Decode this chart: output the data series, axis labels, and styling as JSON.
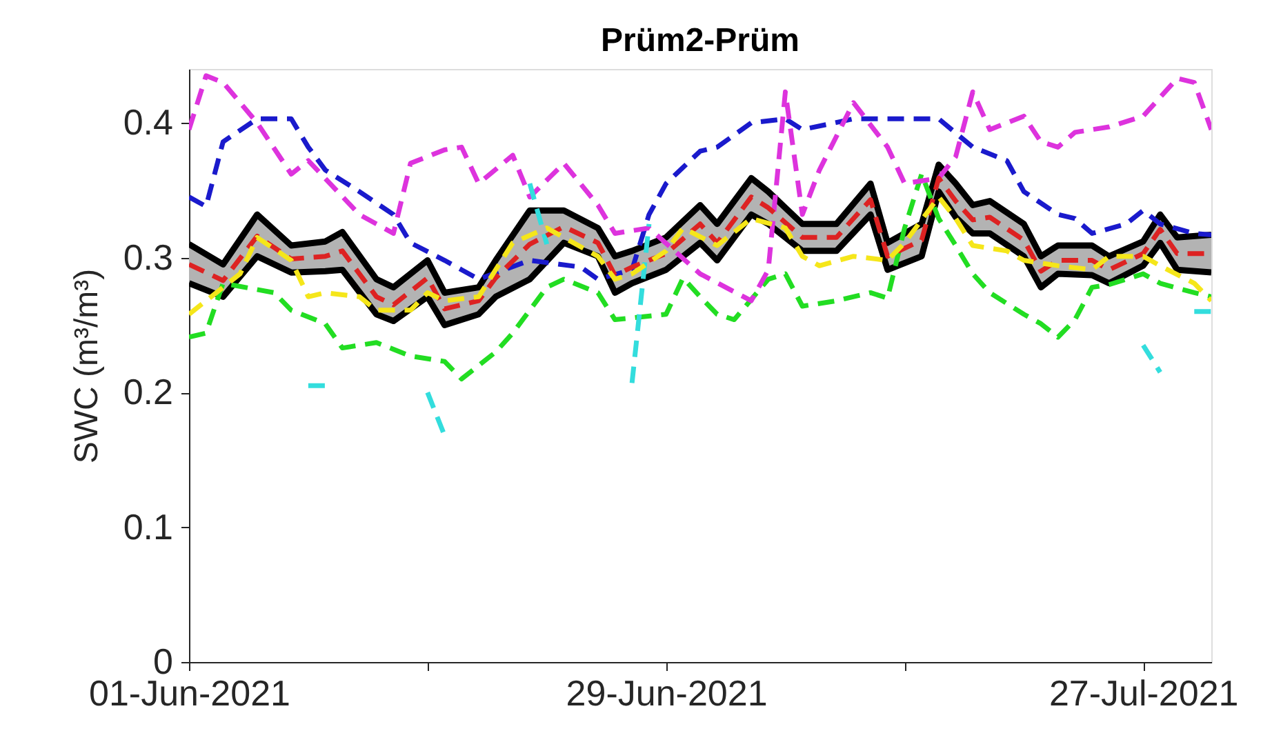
{
  "chart_data": {
    "type": "line",
    "title": "Prüm2-Prüm",
    "ylabel": "SWC (m³/m³)",
    "xlim": [
      "2021-06-01",
      "2021-07-31"
    ],
    "xticks": [
      {
        "value": "2021-06-01",
        "label": "01-Jun-2021"
      },
      {
        "value": "2021-06-15",
        "label": null
      },
      {
        "value": "2021-06-29",
        "label": "29-Jun-2021"
      },
      {
        "value": "2021-07-13",
        "label": null
      },
      {
        "value": "2021-07-27",
        "label": "27-Jul-2021"
      }
    ],
    "ylim": [
      0,
      0.44
    ],
    "yticks": [
      0,
      0.1,
      0.2,
      0.3,
      0.4
    ],
    "line_style": "dashed",
    "series": [
      {
        "color": "#22dd22",
        "x": [
          "2021-06-01",
          "2021-06-02",
          "2021-06-03",
          "2021-06-06",
          "2021-06-07",
          "2021-06-09",
          "2021-06-10",
          "2021-06-12",
          "2021-06-14",
          "2021-06-16",
          "2021-06-17",
          "2021-06-19",
          "2021-06-20",
          "2021-06-22",
          "2021-06-23",
          "2021-06-25",
          "2021-06-26",
          "2021-06-29",
          "2021-06-30",
          "2021-07-01",
          "2021-07-02",
          "2021-07-03",
          "2021-07-05",
          "2021-07-06",
          "2021-07-07",
          "2021-07-09",
          "2021-07-11",
          "2021-07-12",
          "2021-07-13",
          "2021-07-14",
          "2021-07-15",
          "2021-07-16",
          "2021-07-17",
          "2021-07-18",
          "2021-07-20",
          "2021-07-21",
          "2021-07-22",
          "2021-07-23",
          "2021-07-24",
          "2021-07-25",
          "2021-07-27",
          "2021-07-28",
          "2021-07-30",
          "2021-07-31"
        ],
        "values": [
          0.241,
          0.244,
          0.281,
          0.274,
          0.261,
          0.251,
          0.233,
          0.237,
          0.227,
          0.223,
          0.21,
          0.23,
          0.244,
          0.278,
          0.284,
          0.274,
          0.254,
          0.258,
          0.285,
          0.271,
          0.258,
          0.254,
          0.284,
          0.288,
          0.264,
          0.268,
          0.274,
          0.27,
          0.322,
          0.362,
          0.329,
          0.309,
          0.288,
          0.274,
          0.258,
          0.251,
          0.241,
          0.254,
          0.278,
          0.28,
          0.288,
          0.281,
          0.274,
          0.271
        ]
      },
      {
        "color": "#1a1acc",
        "x": [
          "2021-06-01",
          "2021-06-02",
          "2021-06-03",
          "2021-06-05",
          "2021-06-07",
          "2021-06-08",
          "2021-06-09",
          "2021-06-11",
          "2021-06-13",
          "2021-06-14",
          "2021-06-16",
          "2021-06-17",
          "2021-06-18",
          "2021-06-21",
          "2021-06-24",
          "2021-06-25",
          "2021-06-27",
          "2021-06-28",
          "2021-06-29",
          "2021-07-01",
          "2021-07-02",
          "2021-07-04",
          "2021-07-06",
          "2021-07-07",
          "2021-07-10",
          "2021-07-15",
          "2021-07-17",
          "2021-07-19",
          "2021-07-20",
          "2021-07-22",
          "2021-07-23",
          "2021-07-24",
          "2021-07-26",
          "2021-07-27",
          "2021-07-28",
          "2021-07-30",
          "2021-07-31"
        ],
        "values": [
          0.345,
          0.338,
          0.386,
          0.403,
          0.403,
          0.382,
          0.365,
          0.349,
          0.332,
          0.311,
          0.298,
          0.291,
          0.284,
          0.298,
          0.293,
          0.284,
          0.291,
          0.332,
          0.355,
          0.379,
          0.382,
          0.4,
          0.403,
          0.395,
          0.403,
          0.403,
          0.382,
          0.372,
          0.349,
          0.332,
          0.329,
          0.318,
          0.325,
          0.335,
          0.325,
          0.318,
          0.317
        ]
      },
      {
        "color": "#dd33dd",
        "x": [
          "2021-06-01",
          "2021-06-02",
          "2021-06-03",
          "2021-06-05",
          "2021-06-07",
          "2021-06-08",
          "2021-06-11",
          "2021-06-12",
          "2021-06-13",
          "2021-06-14",
          "2021-06-16",
          "2021-06-17",
          "2021-06-18",
          "2021-06-20",
          "2021-06-21",
          "2021-06-23",
          "2021-06-25",
          "2021-06-26",
          "2021-06-28",
          "2021-07-01",
          "2021-07-04",
          "2021-07-05",
          "2021-07-06",
          "2021-07-07",
          "2021-07-08",
          "2021-07-10",
          "2021-07-12",
          "2021-07-13",
          "2021-07-15",
          "2021-07-16",
          "2021-07-17",
          "2021-07-18",
          "2021-07-20",
          "2021-07-21",
          "2021-07-22",
          "2021-07-23",
          "2021-07-25",
          "2021-07-27",
          "2021-07-29",
          "2021-07-30",
          "2021-07-31"
        ],
        "values": [
          0.395,
          0.435,
          0.43,
          0.4,
          0.362,
          0.372,
          0.332,
          0.325,
          0.318,
          0.37,
          0.38,
          0.382,
          0.355,
          0.376,
          0.345,
          0.37,
          0.339,
          0.318,
          0.322,
          0.288,
          0.268,
          0.291,
          0.423,
          0.332,
          0.365,
          0.415,
          0.382,
          0.355,
          0.359,
          0.375,
          0.423,
          0.395,
          0.405,
          0.386,
          0.382,
          0.393,
          0.397,
          0.405,
          0.433,
          0.43,
          0.395
        ]
      },
      {
        "color": "#33dddd",
        "x": [
          "2021-06-08",
          "2021-06-09",
          "2021-06-10",
          "2021-06-15",
          "2021-06-16",
          "2021-06-17",
          "2021-06-21",
          "2021-06-22",
          "2021-06-23",
          "2021-06-27",
          "2021-06-28",
          "2021-06-29",
          "2021-07-27",
          "2021-07-28",
          "2021-07-29",
          "2021-07-30",
          "2021-07-31"
        ],
        "values": [
          0.205,
          0.205,
          null,
          0.2,
          0.168,
          null,
          0.355,
          0.31,
          null,
          0.207,
          0.325,
          null,
          0.235,
          0.215,
          null,
          0.26,
          0.26
        ]
      },
      {
        "color": "#000000",
        "line_style": "solid",
        "x": [
          "2021-06-01",
          "2021-06-03",
          "2021-06-05",
          "2021-06-07",
          "2021-06-09",
          "2021-06-10",
          "2021-06-12",
          "2021-06-13",
          "2021-06-15",
          "2021-06-16",
          "2021-06-18",
          "2021-06-19",
          "2021-06-21",
          "2021-06-23",
          "2021-06-25",
          "2021-06-26",
          "2021-06-27",
          "2021-06-29",
          "2021-07-01",
          "2021-07-02",
          "2021-07-04",
          "2021-07-05",
          "2021-07-07",
          "2021-07-09",
          "2021-07-11",
          "2021-07-12",
          "2021-07-14",
          "2021-07-15",
          "2021-07-16",
          "2021-07-17",
          "2021-07-18",
          "2021-07-20",
          "2021-07-21",
          "2021-07-22",
          "2021-07-24",
          "2021-07-25",
          "2021-07-27",
          "2021-07-28",
          "2021-07-29",
          "2021-07-31"
        ],
        "values": [
          0.31,
          0.295,
          0.332,
          0.309,
          0.312,
          0.319,
          0.284,
          0.278,
          0.298,
          0.274,
          0.278,
          0.298,
          0.335,
          0.335,
          0.322,
          0.301,
          0.305,
          0.315,
          0.339,
          0.325,
          0.359,
          0.349,
          0.325,
          0.325,
          0.355,
          0.311,
          0.325,
          0.369,
          0.355,
          0.339,
          0.342,
          0.325,
          0.301,
          0.309,
          0.309,
          0.301,
          0.312,
          0.332,
          0.315,
          0.317
        ]
      },
      {
        "color": "#000000",
        "line_style": "solid",
        "x": [
          "2021-06-01",
          "2021-06-03",
          "2021-06-05",
          "2021-06-07",
          "2021-06-09",
          "2021-06-10",
          "2021-06-12",
          "2021-06-13",
          "2021-06-15",
          "2021-06-16",
          "2021-06-18",
          "2021-06-19",
          "2021-06-21",
          "2021-06-23",
          "2021-06-25",
          "2021-06-26",
          "2021-06-27",
          "2021-06-29",
          "2021-07-01",
          "2021-07-02",
          "2021-07-04",
          "2021-07-05",
          "2021-07-07",
          "2021-07-09",
          "2021-07-11",
          "2021-07-12",
          "2021-07-14",
          "2021-07-15",
          "2021-07-16",
          "2021-07-17",
          "2021-07-18",
          "2021-07-20",
          "2021-07-21",
          "2021-07-22",
          "2021-07-24",
          "2021-07-25",
          "2021-07-27",
          "2021-07-28",
          "2021-07-29",
          "2021-07-31"
        ],
        "values": [
          0.281,
          0.271,
          0.301,
          0.289,
          0.29,
          0.291,
          0.258,
          0.253,
          0.271,
          0.25,
          0.258,
          0.271,
          0.284,
          0.311,
          0.301,
          0.274,
          0.281,
          0.291,
          0.311,
          0.298,
          0.332,
          0.325,
          0.305,
          0.305,
          0.332,
          0.291,
          0.301,
          0.349,
          0.33,
          0.318,
          0.318,
          0.301,
          0.278,
          0.288,
          0.287,
          0.281,
          0.294,
          0.311,
          0.291,
          0.289
        ]
      },
      {
        "color": "#dd2222",
        "x": [
          "2021-06-01",
          "2021-06-03",
          "2021-06-05",
          "2021-06-07",
          "2021-06-09",
          "2021-06-10",
          "2021-06-12",
          "2021-06-13",
          "2021-06-15",
          "2021-06-16",
          "2021-06-18",
          "2021-06-19",
          "2021-06-21",
          "2021-06-23",
          "2021-06-25",
          "2021-06-26",
          "2021-06-27",
          "2021-06-29",
          "2021-07-01",
          "2021-07-02",
          "2021-07-04",
          "2021-07-05",
          "2021-07-07",
          "2021-07-09",
          "2021-07-11",
          "2021-07-12",
          "2021-07-14",
          "2021-07-15",
          "2021-07-16",
          "2021-07-17",
          "2021-07-18",
          "2021-07-20",
          "2021-07-21",
          "2021-07-22",
          "2021-07-24",
          "2021-07-25",
          "2021-07-27",
          "2021-07-28",
          "2021-07-29",
          "2021-07-31"
        ],
        "values": [
          0.295,
          0.283,
          0.316,
          0.299,
          0.301,
          0.305,
          0.271,
          0.265,
          0.285,
          0.262,
          0.268,
          0.285,
          0.31,
          0.323,
          0.311,
          0.287,
          0.293,
          0.303,
          0.325,
          0.311,
          0.345,
          0.337,
          0.315,
          0.315,
          0.343,
          0.301,
          0.313,
          0.359,
          0.342,
          0.328,
          0.33,
          0.313,
          0.29,
          0.298,
          0.298,
          0.291,
          0.303,
          0.321,
          0.303,
          0.303
        ],
        "upper": [
          0.31,
          0.295,
          0.332,
          0.309,
          0.312,
          0.319,
          0.284,
          0.278,
          0.298,
          0.274,
          0.278,
          0.298,
          0.335,
          0.335,
          0.322,
          0.301,
          0.305,
          0.315,
          0.339,
          0.325,
          0.359,
          0.349,
          0.325,
          0.325,
          0.355,
          0.311,
          0.325,
          0.369,
          0.355,
          0.339,
          0.342,
          0.325,
          0.301,
          0.309,
          0.309,
          0.301,
          0.312,
          0.332,
          0.315,
          0.317
        ],
        "lower": [
          0.281,
          0.271,
          0.301,
          0.289,
          0.29,
          0.291,
          0.258,
          0.253,
          0.271,
          0.25,
          0.258,
          0.271,
          0.284,
          0.311,
          0.301,
          0.274,
          0.281,
          0.291,
          0.311,
          0.298,
          0.332,
          0.325,
          0.305,
          0.305,
          0.332,
          0.291,
          0.301,
          0.349,
          0.33,
          0.318,
          0.318,
          0.301,
          0.278,
          0.288,
          0.287,
          0.281,
          0.294,
          0.311,
          0.291,
          0.289
        ]
      },
      {
        "color": "#f5e61a",
        "x": [
          "2021-06-01",
          "2021-06-02",
          "2021-06-04",
          "2021-06-05",
          "2021-06-07",
          "2021-06-08",
          "2021-06-09",
          "2021-06-11",
          "2021-06-12",
          "2021-06-14",
          "2021-06-15",
          "2021-06-16",
          "2021-06-18",
          "2021-06-19",
          "2021-06-20",
          "2021-06-22",
          "2021-06-23",
          "2021-06-25",
          "2021-06-26",
          "2021-06-27",
          "2021-06-29",
          "2021-06-30",
          "2021-07-02",
          "2021-07-04",
          "2021-07-06",
          "2021-07-07",
          "2021-07-08",
          "2021-07-10",
          "2021-07-12",
          "2021-07-13",
          "2021-07-15",
          "2021-07-16",
          "2021-07-17",
          "2021-07-19",
          "2021-07-20",
          "2021-07-22",
          "2021-07-24",
          "2021-07-25",
          "2021-07-27",
          "2021-07-28",
          "2021-07-30",
          "2021-07-31"
        ],
        "values": [
          0.258,
          0.268,
          0.288,
          0.315,
          0.298,
          0.271,
          0.274,
          0.271,
          0.261,
          0.261,
          0.274,
          0.268,
          0.271,
          0.291,
          0.311,
          0.322,
          0.315,
          0.301,
          0.284,
          0.288,
          0.305,
          0.322,
          0.309,
          0.329,
          0.322,
          0.301,
          0.294,
          0.301,
          0.298,
          0.311,
          0.345,
          0.329,
          0.309,
          0.305,
          0.298,
          0.294,
          0.291,
          0.301,
          0.301,
          0.294,
          0.281,
          0.268
        ]
      }
    ]
  }
}
